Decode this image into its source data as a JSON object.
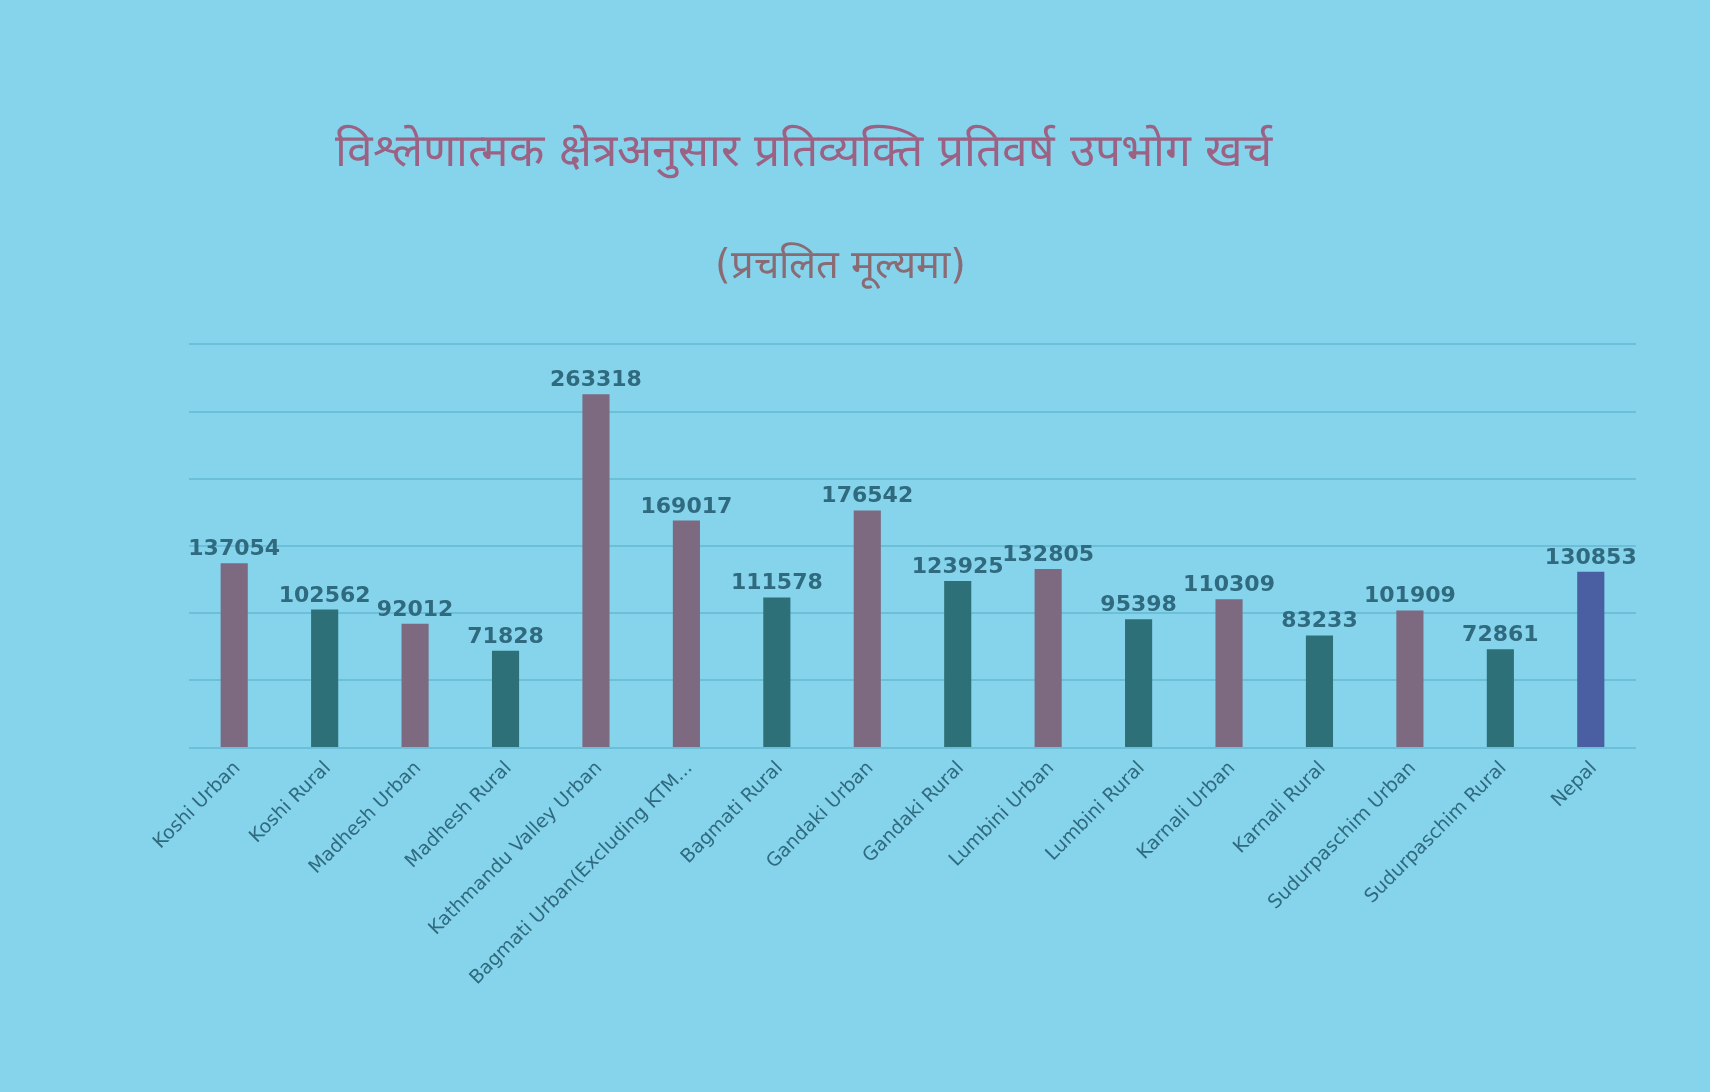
{
  "chart_data": {
    "type": "bar",
    "title": "विश्लेणात्मक क्षेत्रअनुसार प्रतिव्यक्ति प्रतिवर्ष उपभोग खर्च",
    "subtitle": "(प्रचलित मूल्यमा)",
    "categories": [
      "Koshi Urban",
      "Koshi Rural",
      "Madhesh Urban",
      "Madhesh Rural",
      "Kathmandu Valley Urban",
      "Bagmati Urban(Excluding KTM...",
      "Bagmati Rural",
      "Gandaki Urban",
      "Gandaki Rural",
      "Lumbini Urban",
      "Lumbini Rural",
      "Karnali Urban",
      "Karnali Rural",
      "Sudurpaschim Urban",
      "Sudurpaschim Rural",
      "Nepal"
    ],
    "values": [
      137054,
      102562,
      92012,
      71828,
      263318,
      169017,
      111578,
      176542,
      123925,
      132805,
      95398,
      110309,
      83233,
      101909,
      72861,
      130853
    ],
    "colors": [
      "#7d6a80",
      "#2e7078",
      "#7d6a80",
      "#2e7078",
      "#7d6a80",
      "#7d6a80",
      "#2e7078",
      "#7d6a80",
      "#2e7078",
      "#7d6a80",
      "#2e7078",
      "#7d6a80",
      "#2e7078",
      "#7d6a80",
      "#2e7078",
      "#4a5ea2"
    ],
    "data_labels": true,
    "ylim": [
      0,
      300000
    ],
    "yticks": [
      {
        "value": 0,
        "label": null
      },
      {
        "value": 50000,
        "label": null
      },
      {
        "value": 100000,
        "label": null
      },
      {
        "value": 150000,
        "label": null
      },
      {
        "value": 200000,
        "label": null
      },
      {
        "value": 250000,
        "label": null
      },
      {
        "value": 300000,
        "label": null
      }
    ],
    "tick_labels": "x",
    "grid": "y"
  }
}
